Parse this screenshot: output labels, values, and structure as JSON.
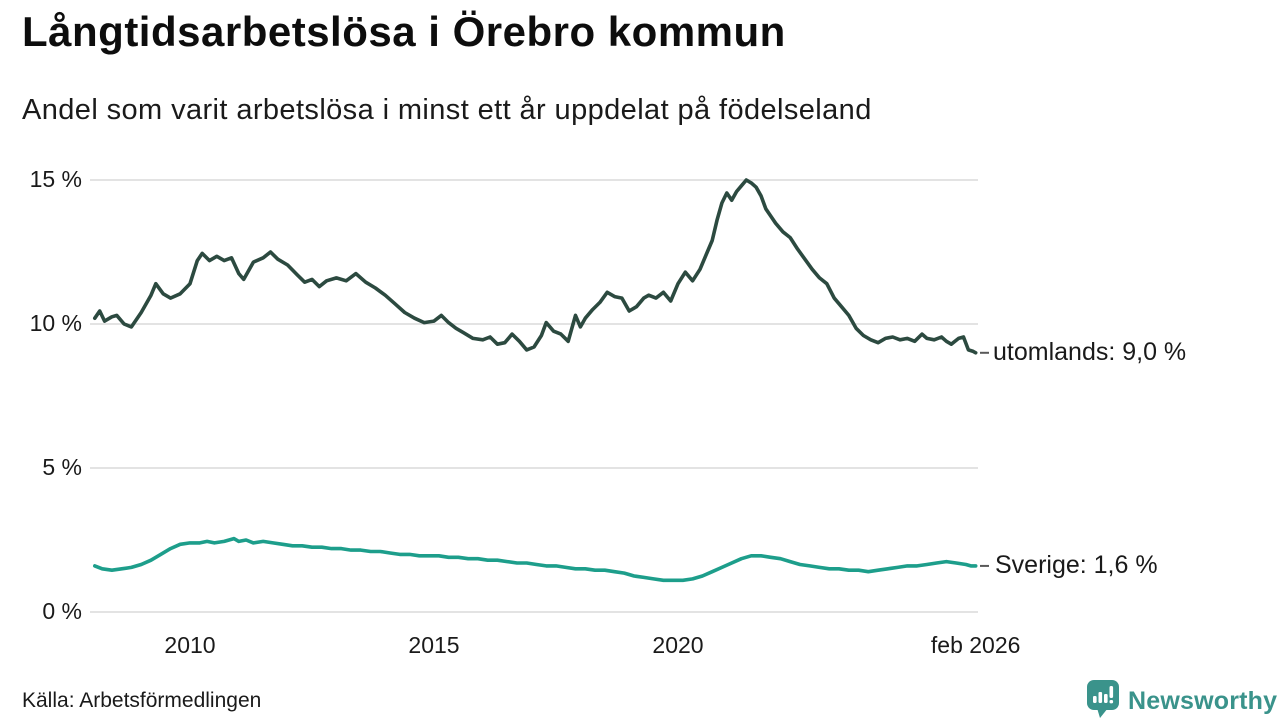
{
  "header": {
    "title": "Långtidsarbetslösa i Örebro kommun",
    "subtitle": "Andel som varit arbetslösa i minst ett år uppdelat på födelseland"
  },
  "footer": {
    "source": "Källa: Arbetsförmedlingen",
    "brand": "Newsworthy",
    "brand_icon": "bar-chart-speech-bubble-icon",
    "brand_color": "#3a938b"
  },
  "chart_data": {
    "type": "line",
    "title": "Långtidsarbetslösa i Örebro kommun",
    "subtitle": "Andel som varit arbetslösa i minst ett år uppdelat på födelseland",
    "grid": true,
    "grid_color": "#e3e3e3",
    "x_axis": {
      "range": [
        2008.0,
        2026.2
      ],
      "ticks": [
        {
          "label": "2010",
          "year": 2010
        },
        {
          "label": "2015",
          "year": 2015
        },
        {
          "label": "2020",
          "year": 2020
        },
        {
          "label": "feb 2026",
          "year": 2026.1
        }
      ]
    },
    "y_axis": {
      "range": [
        0,
        15.4
      ],
      "unit": "%",
      "ticks": [
        {
          "label": "15 %",
          "value": 15
        },
        {
          "label": "10 %",
          "value": 10
        },
        {
          "label": "5 %",
          "value": 5
        },
        {
          "label": "0 %",
          "value": 0
        }
      ]
    },
    "series": [
      {
        "name": "utomlands",
        "label": "utomlands: 9,0 %",
        "last_value": "9,0 %",
        "color": "#2c4a40",
        "points": [
          [
            2008.05,
            10.2
          ],
          [
            2008.15,
            10.45
          ],
          [
            2008.25,
            10.1
          ],
          [
            2008.4,
            10.25
          ],
          [
            2008.5,
            10.3
          ],
          [
            2008.65,
            10.0
          ],
          [
            2008.8,
            9.9
          ],
          [
            2009.0,
            10.4
          ],
          [
            2009.2,
            11.0
          ],
          [
            2009.3,
            11.4
          ],
          [
            2009.45,
            11.05
          ],
          [
            2009.6,
            10.9
          ],
          [
            2009.8,
            11.05
          ],
          [
            2010.0,
            11.4
          ],
          [
            2010.15,
            12.2
          ],
          [
            2010.25,
            12.45
          ],
          [
            2010.4,
            12.2
          ],
          [
            2010.55,
            12.35
          ],
          [
            2010.7,
            12.2
          ],
          [
            2010.85,
            12.3
          ],
          [
            2011.0,
            11.75
          ],
          [
            2011.1,
            11.55
          ],
          [
            2011.3,
            12.15
          ],
          [
            2011.5,
            12.3
          ],
          [
            2011.65,
            12.5
          ],
          [
            2011.8,
            12.25
          ],
          [
            2012.0,
            12.05
          ],
          [
            2012.2,
            11.7
          ],
          [
            2012.35,
            11.45
          ],
          [
            2012.5,
            11.55
          ],
          [
            2012.65,
            11.3
          ],
          [
            2012.8,
            11.5
          ],
          [
            2013.0,
            11.6
          ],
          [
            2013.2,
            11.5
          ],
          [
            2013.4,
            11.75
          ],
          [
            2013.6,
            11.45
          ],
          [
            2013.8,
            11.25
          ],
          [
            2014.0,
            11.0
          ],
          [
            2014.2,
            10.7
          ],
          [
            2014.4,
            10.4
          ],
          [
            2014.6,
            10.2
          ],
          [
            2014.8,
            10.05
          ],
          [
            2015.0,
            10.1
          ],
          [
            2015.15,
            10.3
          ],
          [
            2015.3,
            10.05
          ],
          [
            2015.45,
            9.85
          ],
          [
            2015.6,
            9.7
          ],
          [
            2015.8,
            9.5
          ],
          [
            2016.0,
            9.45
          ],
          [
            2016.15,
            9.55
          ],
          [
            2016.3,
            9.3
          ],
          [
            2016.45,
            9.35
          ],
          [
            2016.6,
            9.65
          ],
          [
            2016.75,
            9.4
          ],
          [
            2016.9,
            9.1
          ],
          [
            2017.05,
            9.2
          ],
          [
            2017.2,
            9.6
          ],
          [
            2017.3,
            10.05
          ],
          [
            2017.45,
            9.75
          ],
          [
            2017.6,
            9.65
          ],
          [
            2017.75,
            9.4
          ],
          [
            2017.9,
            10.3
          ],
          [
            2018.0,
            9.9
          ],
          [
            2018.1,
            10.2
          ],
          [
            2018.25,
            10.5
          ],
          [
            2018.4,
            10.75
          ],
          [
            2018.55,
            11.1
          ],
          [
            2018.7,
            10.95
          ],
          [
            2018.85,
            10.9
          ],
          [
            2019.0,
            10.45
          ],
          [
            2019.15,
            10.6
          ],
          [
            2019.3,
            10.9
          ],
          [
            2019.4,
            11.0
          ],
          [
            2019.55,
            10.9
          ],
          [
            2019.7,
            11.1
          ],
          [
            2019.85,
            10.8
          ],
          [
            2020.0,
            11.4
          ],
          [
            2020.15,
            11.8
          ],
          [
            2020.3,
            11.5
          ],
          [
            2020.45,
            11.9
          ],
          [
            2020.6,
            12.5
          ],
          [
            2020.7,
            12.9
          ],
          [
            2020.8,
            13.6
          ],
          [
            2020.9,
            14.2
          ],
          [
            2021.0,
            14.55
          ],
          [
            2021.1,
            14.3
          ],
          [
            2021.2,
            14.6
          ],
          [
            2021.3,
            14.8
          ],
          [
            2021.4,
            15.0
          ],
          [
            2021.5,
            14.9
          ],
          [
            2021.6,
            14.75
          ],
          [
            2021.7,
            14.45
          ],
          [
            2021.8,
            14.0
          ],
          [
            2021.9,
            13.75
          ],
          [
            2022.0,
            13.5
          ],
          [
            2022.15,
            13.2
          ],
          [
            2022.3,
            13.0
          ],
          [
            2022.45,
            12.6
          ],
          [
            2022.6,
            12.25
          ],
          [
            2022.75,
            11.9
          ],
          [
            2022.9,
            11.6
          ],
          [
            2023.05,
            11.4
          ],
          [
            2023.2,
            10.9
          ],
          [
            2023.35,
            10.6
          ],
          [
            2023.5,
            10.3
          ],
          [
            2023.65,
            9.85
          ],
          [
            2023.8,
            9.6
          ],
          [
            2023.95,
            9.45
          ],
          [
            2024.1,
            9.35
          ],
          [
            2024.25,
            9.5
          ],
          [
            2024.4,
            9.55
          ],
          [
            2024.55,
            9.45
          ],
          [
            2024.7,
            9.5
          ],
          [
            2024.85,
            9.4
          ],
          [
            2025.0,
            9.65
          ],
          [
            2025.1,
            9.5
          ],
          [
            2025.25,
            9.45
          ],
          [
            2025.4,
            9.55
          ],
          [
            2025.5,
            9.4
          ],
          [
            2025.6,
            9.3
          ],
          [
            2025.75,
            9.5
          ],
          [
            2025.85,
            9.55
          ],
          [
            2025.95,
            9.1
          ],
          [
            2026.05,
            9.05
          ],
          [
            2026.1,
            9.0
          ]
        ]
      },
      {
        "name": "Sverige",
        "label": "Sverige: 1,6 %",
        "last_value": "1,6 %",
        "color": "#1d9e8b",
        "points": [
          [
            2008.05,
            1.6
          ],
          [
            2008.2,
            1.5
          ],
          [
            2008.4,
            1.45
          ],
          [
            2008.6,
            1.5
          ],
          [
            2008.8,
            1.55
          ],
          [
            2009.0,
            1.65
          ],
          [
            2009.2,
            1.8
          ],
          [
            2009.4,
            2.0
          ],
          [
            2009.6,
            2.2
          ],
          [
            2009.8,
            2.35
          ],
          [
            2010.0,
            2.4
          ],
          [
            2010.2,
            2.4
          ],
          [
            2010.35,
            2.45
          ],
          [
            2010.5,
            2.4
          ],
          [
            2010.7,
            2.45
          ],
          [
            2010.9,
            2.55
          ],
          [
            2011.0,
            2.45
          ],
          [
            2011.15,
            2.5
          ],
          [
            2011.3,
            2.4
          ],
          [
            2011.5,
            2.45
          ],
          [
            2011.7,
            2.4
          ],
          [
            2011.9,
            2.35
          ],
          [
            2012.1,
            2.3
          ],
          [
            2012.3,
            2.3
          ],
          [
            2012.5,
            2.25
          ],
          [
            2012.7,
            2.25
          ],
          [
            2012.9,
            2.2
          ],
          [
            2013.1,
            2.2
          ],
          [
            2013.3,
            2.15
          ],
          [
            2013.5,
            2.15
          ],
          [
            2013.7,
            2.1
          ],
          [
            2013.9,
            2.1
          ],
          [
            2014.1,
            2.05
          ],
          [
            2014.3,
            2.0
          ],
          [
            2014.5,
            2.0
          ],
          [
            2014.7,
            1.95
          ],
          [
            2014.9,
            1.95
          ],
          [
            2015.1,
            1.95
          ],
          [
            2015.3,
            1.9
          ],
          [
            2015.5,
            1.9
          ],
          [
            2015.7,
            1.85
          ],
          [
            2015.9,
            1.85
          ],
          [
            2016.1,
            1.8
          ],
          [
            2016.3,
            1.8
          ],
          [
            2016.5,
            1.75
          ],
          [
            2016.7,
            1.7
          ],
          [
            2016.9,
            1.7
          ],
          [
            2017.1,
            1.65
          ],
          [
            2017.3,
            1.6
          ],
          [
            2017.5,
            1.6
          ],
          [
            2017.7,
            1.55
          ],
          [
            2017.9,
            1.5
          ],
          [
            2018.1,
            1.5
          ],
          [
            2018.3,
            1.45
          ],
          [
            2018.5,
            1.45
          ],
          [
            2018.7,
            1.4
          ],
          [
            2018.9,
            1.35
          ],
          [
            2019.1,
            1.25
          ],
          [
            2019.3,
            1.2
          ],
          [
            2019.5,
            1.15
          ],
          [
            2019.7,
            1.1
          ],
          [
            2019.9,
            1.1
          ],
          [
            2020.1,
            1.1
          ],
          [
            2020.3,
            1.15
          ],
          [
            2020.5,
            1.25
          ],
          [
            2020.7,
            1.4
          ],
          [
            2020.9,
            1.55
          ],
          [
            2021.1,
            1.7
          ],
          [
            2021.3,
            1.85
          ],
          [
            2021.5,
            1.95
          ],
          [
            2021.7,
            1.95
          ],
          [
            2021.9,
            1.9
          ],
          [
            2022.1,
            1.85
          ],
          [
            2022.3,
            1.75
          ],
          [
            2022.5,
            1.65
          ],
          [
            2022.7,
            1.6
          ],
          [
            2022.9,
            1.55
          ],
          [
            2023.1,
            1.5
          ],
          [
            2023.3,
            1.5
          ],
          [
            2023.5,
            1.45
          ],
          [
            2023.7,
            1.45
          ],
          [
            2023.9,
            1.4
          ],
          [
            2024.1,
            1.45
          ],
          [
            2024.3,
            1.5
          ],
          [
            2024.5,
            1.55
          ],
          [
            2024.7,
            1.6
          ],
          [
            2024.9,
            1.6
          ],
          [
            2025.1,
            1.65
          ],
          [
            2025.3,
            1.7
          ],
          [
            2025.5,
            1.75
          ],
          [
            2025.7,
            1.7
          ],
          [
            2025.9,
            1.65
          ],
          [
            2026.0,
            1.6
          ],
          [
            2026.1,
            1.6
          ]
        ]
      }
    ]
  }
}
